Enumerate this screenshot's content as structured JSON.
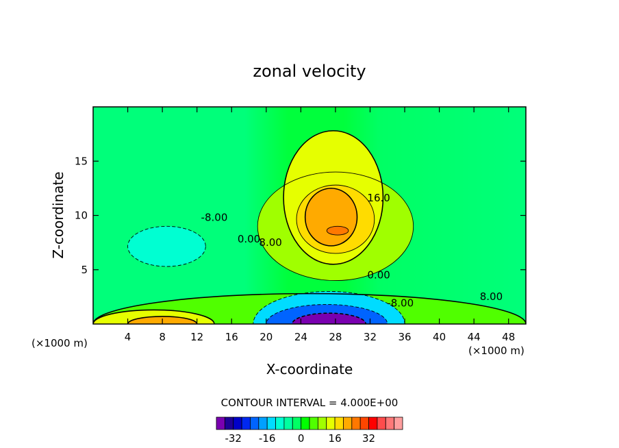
{
  "chart_data": {
    "type": "contour",
    "title": "zonal velocity",
    "xlabel": "X-coordinate",
    "ylabel": "Z-coordinate",
    "x_unit_left": "(×1000 m)",
    "x_unit_right": "(×1000 m)",
    "x_ticks": [
      4,
      8,
      12,
      16,
      20,
      24,
      28,
      32,
      36,
      40,
      44,
      48
    ],
    "y_ticks": [
      5,
      10,
      15
    ],
    "xlim": [
      0,
      50
    ],
    "ylim": [
      0,
      20
    ],
    "contour_interval_text": "CONTOUR INTERVAL = 4.000E+00",
    "contour_labels": [
      {
        "text": "-8.00",
        "x": 14,
        "z": 9.5
      },
      {
        "text": "0.00",
        "x": 18,
        "z": 7.5
      },
      {
        "text": "8.00",
        "x": 20.5,
        "z": 7.2
      },
      {
        "text": "16.0",
        "x": 33,
        "z": 11.3
      },
      {
        "text": "0.00",
        "x": 33,
        "z": 4.2
      },
      {
        "text": "-8.00",
        "x": 35.5,
        "z": 1.6
      },
      {
        "text": "8.00",
        "x": 46,
        "z": 2.2
      }
    ],
    "colorbar": {
      "colors": [
        "#7a00b0",
        "#1e0096",
        "#0000c8",
        "#0028f0",
        "#0064ff",
        "#00a0ff",
        "#00dcff",
        "#00ffd2",
        "#00ffa0",
        "#00ff64",
        "#00ff00",
        "#50ff00",
        "#a0ff00",
        "#e6ff00",
        "#ffdc00",
        "#ffaa00",
        "#ff7800",
        "#ff4600",
        "#ff0000",
        "#ff4c4c",
        "#ff7878",
        "#ff9e9e"
      ],
      "tick_labels": [
        "-32",
        "-16",
        "0",
        "16",
        "32"
      ],
      "tick_values": [
        -32,
        -16,
        0,
        16,
        32
      ]
    },
    "fields": [
      {
        "value": 8,
        "color": "#50ff00",
        "x_min": 0,
        "x_max": 50,
        "z_min": 0,
        "z_max": 2.8
      },
      {
        "value": 16,
        "color": "#e6ff00",
        "x_min": 0,
        "x_max": 14,
        "z_min": 0,
        "z_max": 1.3
      },
      {
        "value": 24,
        "color": "#ffaa00",
        "x_min": 4,
        "x_max": 12,
        "z_min": 0,
        "z_max": 0.7
      },
      {
        "value": 12,
        "color": "#a0ff00",
        "x_min": 19,
        "x_max": 37,
        "z_min": 4,
        "z_max": 14
      },
      {
        "value": 16,
        "color": "#e6ff00",
        "x_min": 22,
        "x_max": 33.5,
        "z_min": 5.5,
        "z_max": 17.8
      },
      {
        "value": 20,
        "color": "#ffdc00",
        "x_min": 23.5,
        "x_max": 32.5,
        "z_min": 6.5,
        "z_max": 12.8
      },
      {
        "value": 24,
        "color": "#ffaa00",
        "x_min": 24.5,
        "x_max": 30.5,
        "z_min": 7.2,
        "z_max": 12.5
      },
      {
        "value": 28,
        "color": "#ff7800",
        "x_min": 27,
        "x_max": 29.5,
        "z_min": 8.2,
        "z_max": 9.0
      },
      {
        "value": -12,
        "color": "#00dcff",
        "x_min": 18.5,
        "x_max": 36,
        "z_min": 0,
        "z_max": 3.0
      },
      {
        "value": -20,
        "color": "#0064ff",
        "x_min": 20,
        "x_max": 34,
        "z_min": 0,
        "z_max": 1.8
      },
      {
        "value": -32,
        "color": "#7a00b0",
        "x_min": 23,
        "x_max": 31.5,
        "z_min": 0,
        "z_max": 1.0
      },
      {
        "value": -4,
        "color": "#00ffd2",
        "x_min": 4,
        "x_max": 13,
        "z_min": 5.3,
        "z_max": 9.0
      }
    ]
  }
}
